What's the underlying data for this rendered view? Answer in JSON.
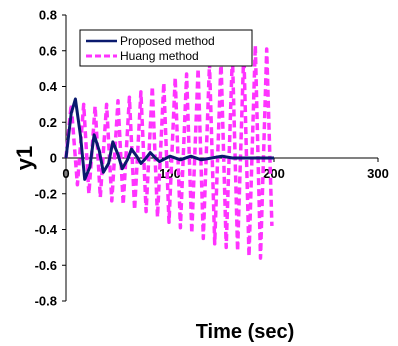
{
  "chart_data": {
    "type": "line",
    "xlabel": "Time (sec)",
    "ylabel": "y1",
    "xlim": [
      0,
      300
    ],
    "ylim": [
      -0.8,
      0.8
    ],
    "xticks": [
      0,
      100,
      200,
      300
    ],
    "xtick_labels": [
      "0",
      "100",
      "200",
      "300"
    ],
    "yticks": [
      0.8,
      0.6,
      0.4,
      0.2,
      0,
      -0.2,
      -0.4,
      -0.6,
      -0.8
    ],
    "ytick_labels": [
      "0.8",
      "0.6",
      "0.4",
      "0.2",
      "0",
      "-0.2",
      "-0.4",
      "-0.6",
      "-0.8"
    ],
    "grid": false,
    "legend_position": "top-left",
    "series": [
      {
        "name": "Proposed method",
        "color": "#0a1a6e",
        "style": "solid",
        "x": [
          0,
          5,
          9,
          14,
          18,
          23,
          27,
          32,
          36,
          41,
          45,
          50,
          54,
          59,
          63,
          68,
          72,
          77,
          81,
          86,
          90,
          100,
          110,
          120,
          130,
          140,
          150,
          160,
          170,
          180,
          190,
          200
        ],
        "y": [
          0,
          0.25,
          0.33,
          0.12,
          -0.12,
          -0.05,
          0.13,
          0.04,
          -0.08,
          -0.03,
          0.09,
          0.02,
          -0.06,
          -0.01,
          0.05,
          0.01,
          -0.03,
          0.0,
          0.03,
          0.0,
          -0.02,
          0.01,
          -0.01,
          0.01,
          -0.01,
          0.0,
          0.01,
          0.0,
          0.0,
          0.0,
          0.0,
          0.0
        ]
      },
      {
        "name": "Huang method",
        "color": "#ff33ff",
        "style": "dashed",
        "x": [
          0,
          5,
          11,
          17,
          22,
          28,
          33,
          39,
          44,
          50,
          55,
          61,
          66,
          72,
          77,
          83,
          88,
          94,
          99,
          105,
          110,
          116,
          121,
          127,
          132,
          138,
          143,
          149,
          154,
          160,
          165,
          171,
          176,
          182,
          187,
          193,
          198
        ],
        "y": [
          0,
          0.3,
          -0.15,
          0.3,
          -0.2,
          0.29,
          -0.22,
          0.3,
          -0.24,
          0.32,
          -0.26,
          0.34,
          -0.29,
          0.37,
          -0.3,
          0.4,
          -0.33,
          0.42,
          -0.36,
          0.45,
          -0.39,
          0.47,
          -0.42,
          0.5,
          -0.45,
          0.53,
          -0.48,
          0.55,
          -0.5,
          0.58,
          -0.52,
          0.6,
          -0.55,
          0.63,
          -0.56,
          0.61,
          -0.38
        ]
      }
    ]
  }
}
